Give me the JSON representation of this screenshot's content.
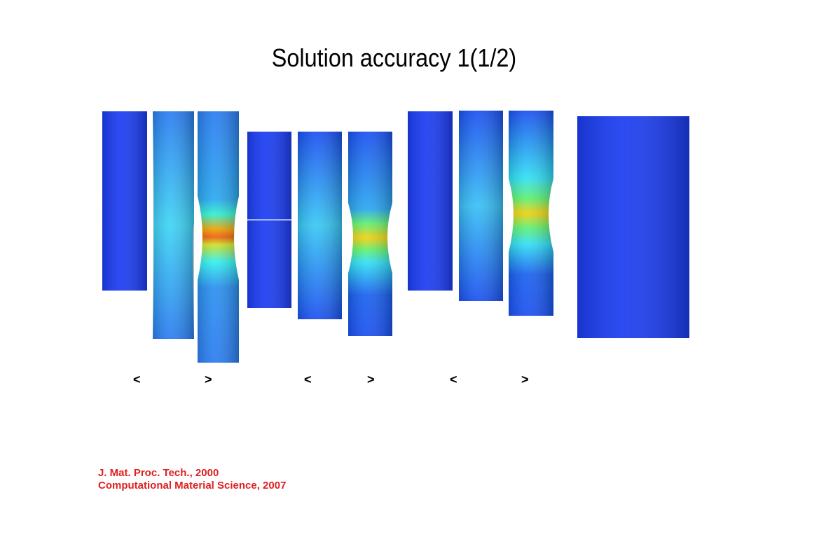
{
  "title": "Solution accuracy 1(1/2)",
  "labels": [
    "<",
    ">",
    "<",
    ">",
    "<",
    ">"
  ],
  "references": [
    "J. Mat. Proc. Tech., 2000",
    "Computational Material Science, 2007"
  ]
}
